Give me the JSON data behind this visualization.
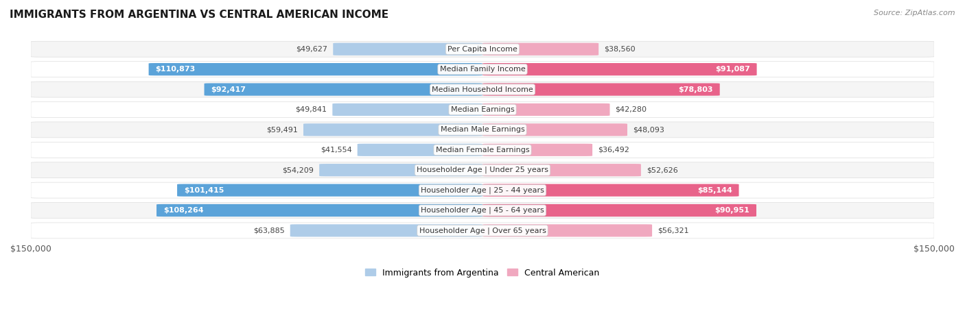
{
  "title": "IMMIGRANTS FROM ARGENTINA VS CENTRAL AMERICAN INCOME",
  "source": "Source: ZipAtlas.com",
  "categories": [
    "Per Capita Income",
    "Median Family Income",
    "Median Household Income",
    "Median Earnings",
    "Median Male Earnings",
    "Median Female Earnings",
    "Householder Age | Under 25 years",
    "Householder Age | 25 - 44 years",
    "Householder Age | 45 - 64 years",
    "Householder Age | Over 65 years"
  ],
  "argentina_values": [
    49627,
    110873,
    92417,
    49841,
    59491,
    41554,
    54209,
    101415,
    108264,
    63885
  ],
  "central_american_values": [
    38560,
    91087,
    78803,
    42280,
    48093,
    36492,
    52626,
    85144,
    90951,
    56321
  ],
  "argentina_color_strong": "#5ba3d9",
  "argentina_color_light": "#aecce8",
  "central_american_color_strong": "#e8638a",
  "central_american_color_light": "#f0a8bf",
  "inside_threshold": 65000,
  "max_value": 150000,
  "background_color": "#ffffff",
  "row_bg_even": "#f5f5f5",
  "row_bg_odd": "#ffffff",
  "legend_argentina": "Immigrants from Argentina",
  "legend_central": "Central American",
  "title_fontsize": 11,
  "source_fontsize": 8,
  "label_fontsize": 8,
  "category_fontsize": 8
}
